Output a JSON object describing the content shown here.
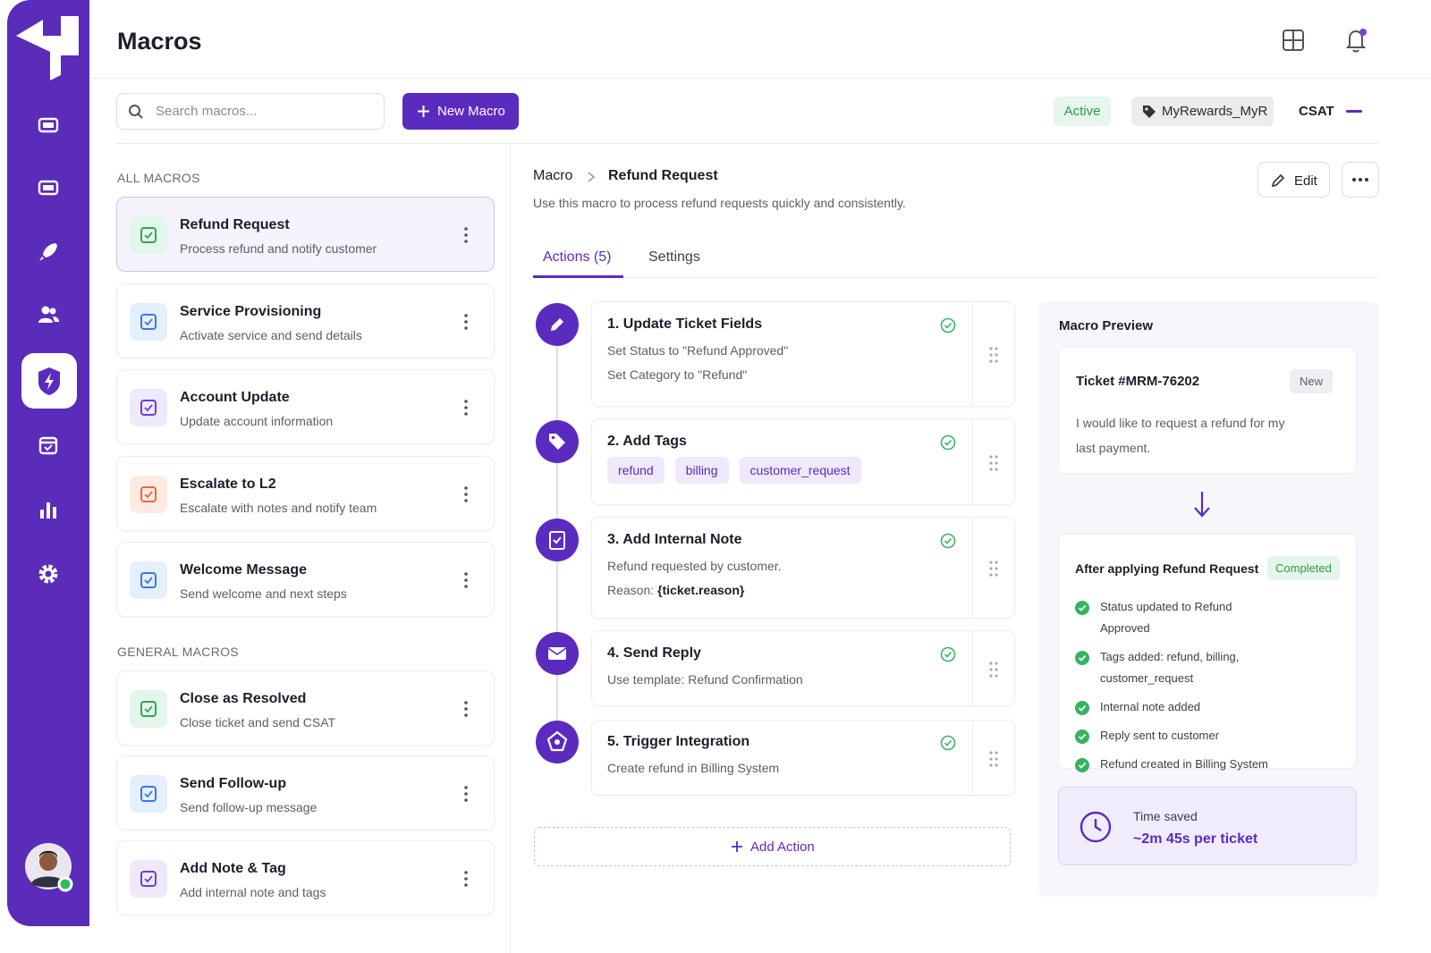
{
  "header": {
    "title": "Macros"
  },
  "toolbar": {
    "search_placeholder": "Search macros...",
    "new_button": "New Macro",
    "status": "Active",
    "tag": "MyRewards_MyR",
    "csat": "CSAT"
  },
  "macro_list": {
    "sections": [
      {
        "title": "ALL MACROS",
        "items": [
          {
            "name": "Refund Request",
            "description": "Process refund and notify customer"
          },
          {
            "name": "Service Provisioning",
            "description": "Activate service and send details"
          },
          {
            "name": "Account Update",
            "description": "Update account information"
          },
          {
            "name": "Escalate to L2",
            "description": "Escalate with notes and notify team"
          },
          {
            "name": "Welcome Message",
            "description": "Send welcome and next steps"
          }
        ]
      },
      {
        "title": "GENERAL MACROS",
        "items": [
          {
            "name": "Close as Resolved",
            "description": "Close ticket and send CSAT"
          },
          {
            "name": "Send Follow-up",
            "description": "Send follow-up message"
          },
          {
            "name": "Add Note & Tag",
            "description": "Add internal note and tags"
          }
        ]
      }
    ]
  },
  "detail": {
    "breadcrumb": [
      "Macro",
      "Refund Request"
    ],
    "description": "Use this macro to process refund requests quickly and consistently.",
    "edit": "Edit",
    "tabs": [
      "Actions (5)",
      "Settings"
    ],
    "actions": [
      {
        "title": "1. Update Ticket Fields",
        "lines": [
          "Set Status to \"Refund Approved\"",
          "Set Category to \"Refund\""
        ]
      },
      {
        "title": "2. Add Tags",
        "tags": [
          "refund",
          "billing",
          "customer_request"
        ]
      },
      {
        "title": "3. Add Internal Note",
        "lines": [
          "Refund requested by customer."
        ],
        "reason_label": "Reason:",
        "reason_value": "{ticket.reason}"
      },
      {
        "title": "4. Send Reply",
        "lines": [
          "Use template: Refund Confirmation"
        ]
      },
      {
        "title": "5. Trigger Integration",
        "lines": [
          "Create refund in Billing System"
        ]
      }
    ],
    "add_action": "Add Action"
  },
  "preview": {
    "title": "Macro Preview",
    "ticket_id": "Ticket #MRM-76202",
    "ticket_status": "New",
    "message": "I would like to request a refund for my last payment.",
    "after_title": "After applying Refund Request",
    "after_status": "Completed",
    "results": [
      "Status updated to Refund Approved",
      "Tags added: refund, billing, customer_request",
      "Internal note added",
      "Reply sent to customer",
      "Refund created in Billing System"
    ],
    "time_saved_label": "Time saved",
    "time_saved_value": "~2m 45s per ticket"
  }
}
